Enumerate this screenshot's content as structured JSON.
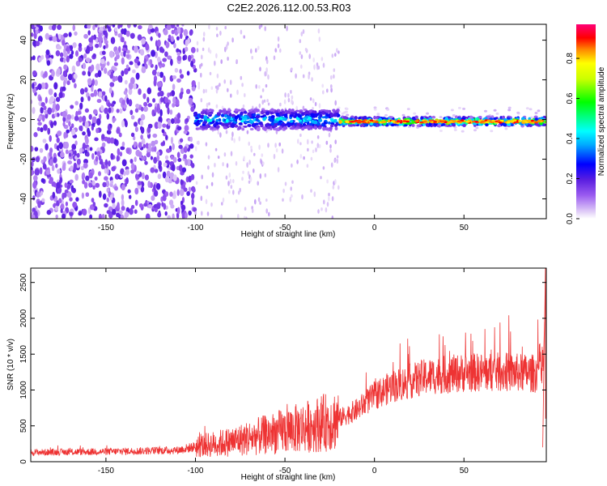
{
  "title": "C2E2.2026.112.00.53.R03",
  "chart_data": [
    {
      "type": "heatmap",
      "xlabel": "Height of straight line (km)",
      "ylabel": "Frequency (Hz)",
      "xlim": [
        -192,
        96
      ],
      "ylim": [
        -50,
        48
      ],
      "xticks": [
        -150,
        -100,
        -50,
        0,
        50
      ],
      "yticks": [
        -40,
        -20,
        0,
        20,
        40
      ],
      "colorbar": {
        "label": "Normalized spectral amplitude",
        "range": [
          0,
          0.97
        ],
        "ticks": [
          "0.0",
          "0.2",
          "0.4",
          "0.6",
          "0.8"
        ],
        "colormap": "rainbow (white-violet-blue-cyan-green-yellow-red-magenta)"
      },
      "ridge": {
        "description": "signal concentrated near 0 Hz",
        "segments": [
          {
            "x_from": -100,
            "x_to": -20,
            "freq": 0,
            "amplitude": 0.35
          },
          {
            "x_from": -20,
            "x_to": 95,
            "freq": -1,
            "amplitude": 0.75
          }
        ]
      }
    },
    {
      "type": "line",
      "xlabel": "Height of straight line (km)",
      "ylabel": "SNR (10 * v/v)",
      "xlim": [
        -192,
        96
      ],
      "ylim": [
        0,
        2700
      ],
      "xticks": [
        -150,
        -100,
        -50,
        0,
        50
      ],
      "yticks": [
        0,
        500,
        1000,
        1500,
        2000,
        2500
      ],
      "series": [
        {
          "color": "#ee3333",
          "trend_x": [
            -192,
            -150,
            -110,
            -100,
            -80,
            -60,
            -40,
            -25,
            -20,
            -10,
            0,
            10,
            20,
            30,
            50,
            70,
            90,
            93
          ],
          "trend_y": [
            130,
            140,
            160,
            210,
            280,
            380,
            480,
            560,
            600,
            720,
            920,
            1050,
            1120,
            1190,
            1240,
            1250,
            1230,
            1400
          ]
        }
      ]
    }
  ]
}
